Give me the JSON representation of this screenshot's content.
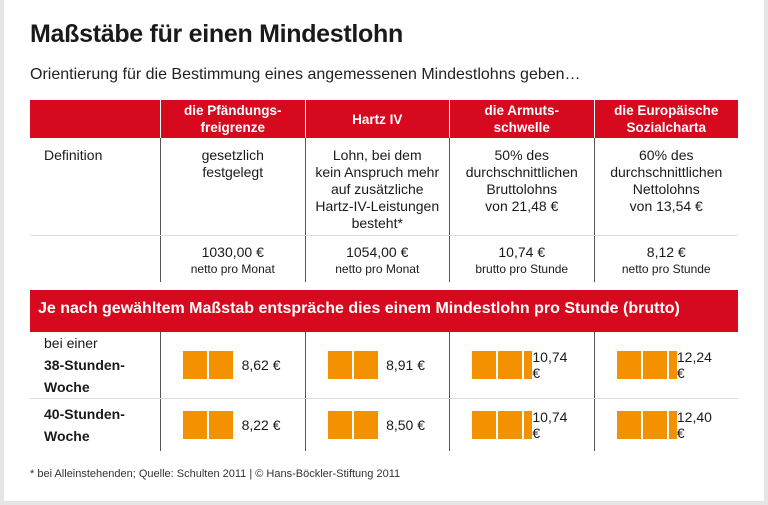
{
  "title": "Maßstäbe für einen Mindestlohn",
  "subtitle": "Orientierung für die Bestimmung eines angemessenen Mindestlohns geben…",
  "columns": [
    "die Pfändungs-\nfreigrenze",
    "Hartz IV",
    "die Armuts-\nschwelle",
    "die Europäische\nSozialcharta"
  ],
  "definition_label": "Definition",
  "definitions": [
    "gesetzlich\nfestgelegt",
    "Lohn, bei dem\nkein Anspruch mehr\nauf zusätzliche\nHartz-IV-Leistungen\nbesteht*",
    "50% des\ndurchschnittlichen\nBruttolohns\nvon 21,48 €",
    "60% des\ndurchschnittlichen\nNettolohns\nvon 13,54 €"
  ],
  "values": [
    {
      "amount": "1030,00 €",
      "unit": "netto pro Monat"
    },
    {
      "amount": "1054,00 €",
      "unit": "netto pro Monat"
    },
    {
      "amount": "10,74 €",
      "unit": "brutto pro Stunde"
    },
    {
      "amount": "8,12 €",
      "unit": "netto pro Stunde"
    }
  ],
  "banner": "Je nach gewähltem Maßstab entspräche dies einem Mindestlohn pro Stunde (brutto)",
  "footnote": "* bei Alleinstehenden; Quelle: Schulten 2011 | © Hans-Böckler-Stiftung 2011",
  "colors": {
    "header_red": "#d7091e",
    "bar_orange": "#f39100"
  },
  "chart_data": {
    "type": "bar",
    "categories": [
      "die Pfändungsfreigrenze",
      "Hartz IV",
      "die Armutsschwelle",
      "die Europäische Sozialcharta"
    ],
    "series": [
      {
        "name": "38-Stunden-Woche",
        "label_prefix": "bei einer",
        "label_bold": "38-Stunden-\nWoche",
        "values": [
          8.62,
          8.91,
          10.74,
          12.24
        ],
        "labels": [
          "8,62 €",
          "8,91 €",
          "10,74 €",
          "12,24 €"
        ]
      },
      {
        "name": "40-Stunden-Woche",
        "label_bold": "40-Stunden-\nWoche",
        "values": [
          8.22,
          8.5,
          10.74,
          12.4
        ],
        "labels": [
          "8,22 €",
          "8,50 €",
          "10,74 €",
          "12,40 €"
        ]
      }
    ]
  }
}
